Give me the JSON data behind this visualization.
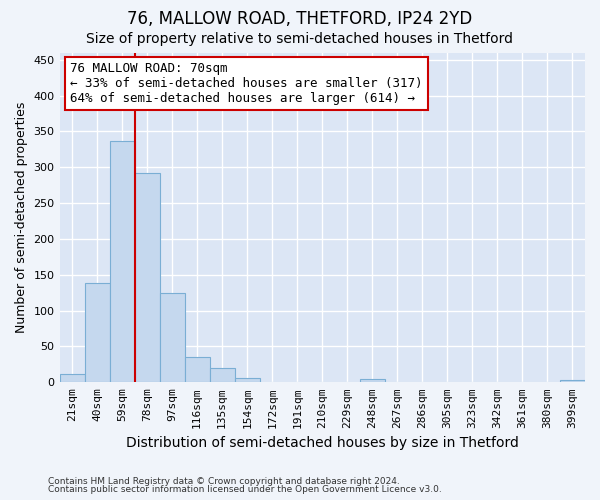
{
  "title": "76, MALLOW ROAD, THETFORD, IP24 2YD",
  "subtitle": "Size of property relative to semi-detached houses in Thetford",
  "xlabel": "Distribution of semi-detached houses by size in Thetford",
  "ylabel": "Number of semi-detached properties",
  "categories": [
    "21sqm",
    "40sqm",
    "59sqm",
    "78sqm",
    "97sqm",
    "116sqm",
    "135sqm",
    "154sqm",
    "172sqm",
    "191sqm",
    "210sqm",
    "229sqm",
    "248sqm",
    "267sqm",
    "286sqm",
    "305sqm",
    "323sqm",
    "342sqm",
    "361sqm",
    "380sqm",
    "399sqm"
  ],
  "values": [
    12,
    138,
    337,
    292,
    124,
    35,
    20,
    6,
    1,
    0,
    0,
    0,
    5,
    0,
    0,
    0,
    0,
    0,
    0,
    0,
    3
  ],
  "bar_color": "#c5d8ee",
  "bar_edgecolor": "#7aaed4",
  "vline_color": "#cc0000",
  "vline_x": 2.5,
  "annotation_line1": "76 MALLOW ROAD: 70sqm",
  "annotation_line2": "← 33% of semi-detached houses are smaller (317)",
  "annotation_line3": "64% of semi-detached houses are larger (614) →",
  "annotation_box_color": "#ffffff",
  "annotation_border_color": "#cc0000",
  "ylim": [
    0,
    460
  ],
  "yticks": [
    0,
    50,
    100,
    150,
    200,
    250,
    300,
    350,
    400,
    450
  ],
  "footnote1": "Contains HM Land Registry data © Crown copyright and database right 2024.",
  "footnote2": "Contains public sector information licensed under the Open Government Licence v3.0.",
  "background_color": "#f0f4fa",
  "plot_background_color": "#dce6f5",
  "grid_color": "#ffffff",
  "title_fontsize": 12,
  "subtitle_fontsize": 10,
  "xlabel_fontsize": 10,
  "ylabel_fontsize": 9,
  "tick_fontsize": 8,
  "annot_fontsize": 9
}
